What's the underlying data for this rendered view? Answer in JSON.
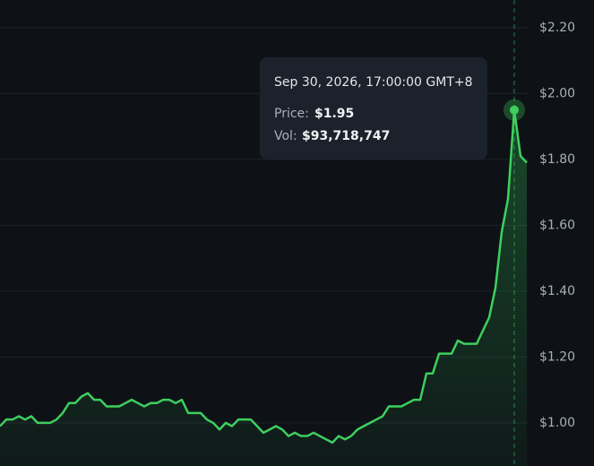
{
  "chart_data": {
    "type": "line",
    "values": [
      0.99,
      1.01,
      1.01,
      1.02,
      1.01,
      1.02,
      1.0,
      1.0,
      1.0,
      1.01,
      1.03,
      1.06,
      1.06,
      1.08,
      1.09,
      1.07,
      1.07,
      1.05,
      1.05,
      1.05,
      1.06,
      1.07,
      1.06,
      1.05,
      1.06,
      1.06,
      1.07,
      1.07,
      1.06,
      1.07,
      1.03,
      1.03,
      1.03,
      1.01,
      1.0,
      0.98,
      1.0,
      0.99,
      1.01,
      1.01,
      1.01,
      0.99,
      0.97,
      0.98,
      0.99,
      0.98,
      0.96,
      0.97,
      0.96,
      0.96,
      0.97,
      0.96,
      0.95,
      0.94,
      0.96,
      0.95,
      0.96,
      0.98,
      0.99,
      1.0,
      1.01,
      1.02,
      1.05,
      1.05,
      1.05,
      1.06,
      1.07,
      1.07,
      1.15,
      1.15,
      1.21,
      1.21,
      1.21,
      1.25,
      1.24,
      1.24,
      1.24,
      1.28,
      1.32,
      1.41,
      1.58,
      1.68,
      1.95,
      1.81,
      1.79
    ],
    "color": "#3ecf5e",
    "ylim": [
      0.869,
      2.284
    ],
    "yticks": [
      {
        "value": 2.2,
        "label": "$2.20"
      },
      {
        "value": 2.0,
        "label": "$2.00"
      },
      {
        "value": 1.8,
        "label": "$1.80"
      },
      {
        "value": 1.6,
        "label": "$1.60"
      },
      {
        "value": 1.4,
        "label": "$1.40"
      },
      {
        "value": 1.2,
        "label": "$1.20"
      },
      {
        "value": 1.0,
        "label": "$1.00"
      }
    ],
    "grid": true,
    "hover_index": 82,
    "tooltip": {
      "date": "Sep 30, 2026, 17:00:00 GMT+8",
      "price_label": "Price:",
      "price_value": "$1.95",
      "vol_label": "Vol:",
      "vol_value": "$93,718,747"
    }
  }
}
